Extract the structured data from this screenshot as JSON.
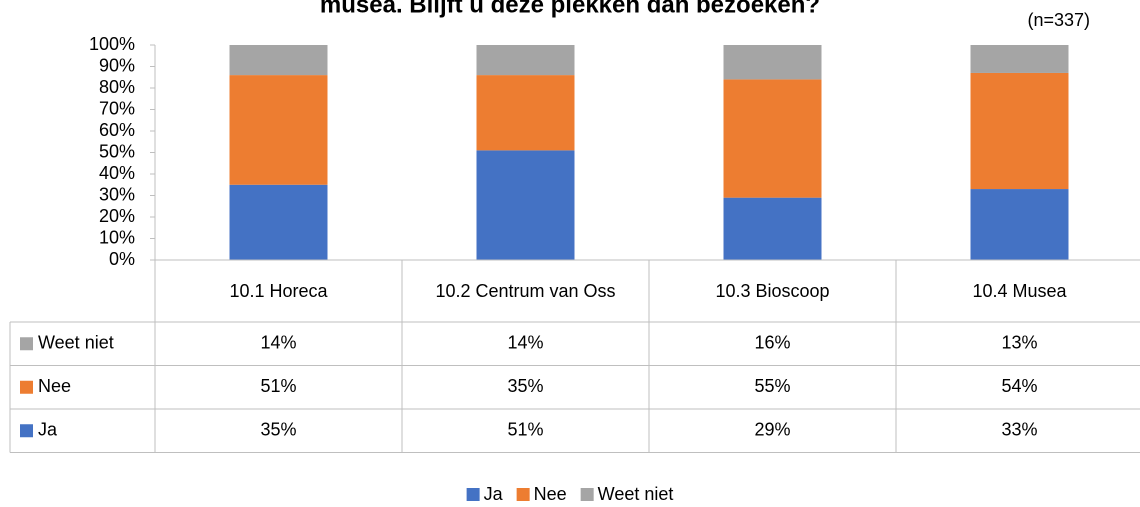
{
  "chart_data": {
    "type": "stacked_bar",
    "title": "musea. Blijft u deze plekken dan bezoeken?",
    "annotation": "(n=337)",
    "categories": [
      "10.1 Horeca",
      "10.2 Centrum van Oss",
      "10.3 Bioscoop",
      "10.4 Musea"
    ],
    "series": [
      {
        "name": "Ja",
        "color": "#4472c4",
        "values": [
          35,
          51,
          29,
          33
        ],
        "value_labels": [
          "35%",
          "51%",
          "29%",
          "33%"
        ]
      },
      {
        "name": "Nee",
        "color": "#ed7d31",
        "values": [
          51,
          35,
          55,
          54
        ],
        "value_labels": [
          "51%",
          "35%",
          "55%",
          "54%"
        ]
      },
      {
        "name": "Weet niet",
        "color": "#a5a5a5",
        "values": [
          14,
          14,
          16,
          13
        ],
        "value_labels": [
          "14%",
          "14%",
          "16%",
          "13%"
        ]
      }
    ],
    "ylim": [
      0,
      100
    ],
    "yticks": [
      {
        "value": 0,
        "label": "0%"
      },
      {
        "value": 10,
        "label": "10%"
      },
      {
        "value": 20,
        "label": "20%"
      },
      {
        "value": 30,
        "label": "30%"
      },
      {
        "value": 40,
        "label": "40%"
      },
      {
        "value": 50,
        "label": "50%"
      },
      {
        "value": 60,
        "label": "60%"
      },
      {
        "value": 70,
        "label": "70%"
      },
      {
        "value": 80,
        "label": "80%"
      },
      {
        "value": 90,
        "label": "90%"
      },
      {
        "value": 100,
        "label": "100%"
      }
    ],
    "grid": false,
    "legend": "bottom"
  }
}
